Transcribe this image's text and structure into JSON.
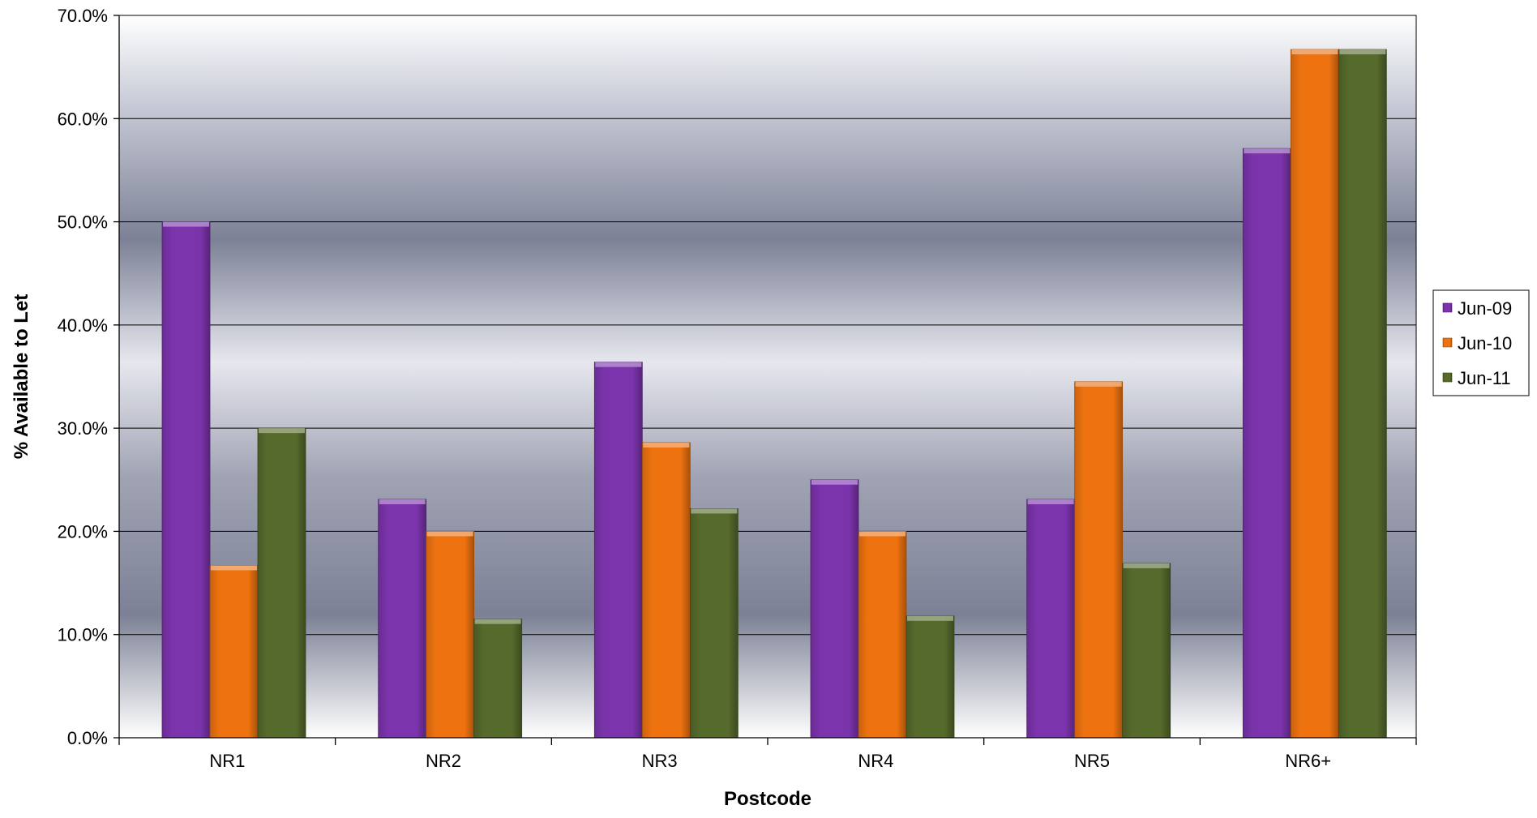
{
  "chart_data": {
    "type": "bar",
    "title": "",
    "xlabel": "Postcode",
    "ylabel": "% Available to Let",
    "ylim": [
      0,
      70
    ],
    "yticks": [
      0,
      10,
      20,
      30,
      40,
      50,
      60,
      70
    ],
    "ytick_labels": [
      "0.0%",
      "10.0%",
      "20.0%",
      "30.0%",
      "40.0%",
      "50.0%",
      "60.0%",
      "70.0%"
    ],
    "categories": [
      "NR1",
      "NR2",
      "NR3",
      "NR4",
      "NR5",
      "NR6+"
    ],
    "series": [
      {
        "name": "Jun-09",
        "color": "#7B34AC",
        "values": [
          50.0,
          23.1,
          36.4,
          25.0,
          23.1,
          57.1
        ]
      },
      {
        "name": "Jun-10",
        "color": "#EE7310",
        "values": [
          16.7,
          20.0,
          28.6,
          20.0,
          34.5,
          66.7
        ]
      },
      {
        "name": "Jun-11",
        "color": "#566A2C",
        "values": [
          30.0,
          11.5,
          22.2,
          11.8,
          16.9,
          66.7
        ]
      }
    ],
    "grid": true,
    "legend_position": "right"
  }
}
